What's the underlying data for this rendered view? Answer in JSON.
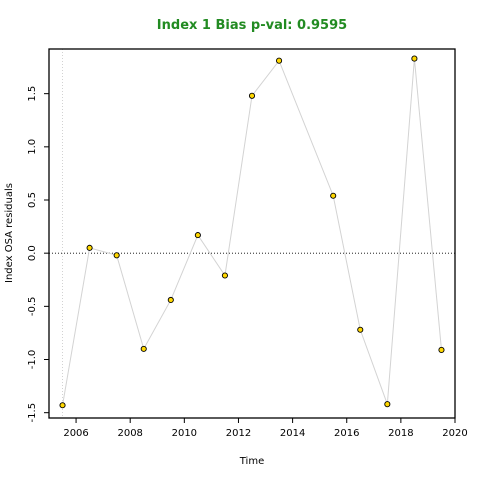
{
  "colors": {
    "title": "#228B22",
    "point_fill": "#FFD700",
    "point_stroke": "#000000",
    "line": "#d3d3d3",
    "zero_line": "#000000",
    "vline": "#c8c8c8"
  },
  "chart_data": {
    "type": "scatter",
    "title": "Index 1 Bias p-val: 0.9595",
    "xlabel": "Time",
    "ylabel": "Index OSA residuals",
    "xlim": [
      2005,
      2020
    ],
    "ylim": [
      -1.55,
      1.92
    ],
    "x_ticks": [
      2006,
      2008,
      2010,
      2012,
      2014,
      2016,
      2018,
      2020
    ],
    "y_ticks": [
      -1.5,
      -1.0,
      -0.5,
      0.0,
      0.5,
      1.0,
      1.5
    ],
    "y_tick_labels": [
      "-1.5",
      "-1.0",
      "-0.5",
      "0.0",
      "0.5",
      "1.0",
      "1.5"
    ],
    "zero_line": 0.0,
    "reference_x": 2005.5,
    "grid": false,
    "series": [
      {
        "points": [
          {
            "x": 2005.5,
            "y": -1.43
          },
          {
            "x": 2006.5,
            "y": 0.05
          },
          {
            "x": 2007.5,
            "y": -0.02
          },
          {
            "x": 2008.5,
            "y": -0.9
          },
          {
            "x": 2009.5,
            "y": -0.44
          },
          {
            "x": 2010.5,
            "y": 0.17
          },
          {
            "x": 2011.5,
            "y": -0.21
          },
          {
            "x": 2012.5,
            "y": 1.48
          },
          {
            "x": 2013.5,
            "y": 1.81
          },
          {
            "x": 2015.5,
            "y": 0.54
          },
          {
            "x": 2016.5,
            "y": -0.72
          },
          {
            "x": 2017.5,
            "y": -1.42
          },
          {
            "x": 2018.5,
            "y": 1.83
          },
          {
            "x": 2019.5,
            "y": -0.91
          }
        ]
      }
    ]
  }
}
